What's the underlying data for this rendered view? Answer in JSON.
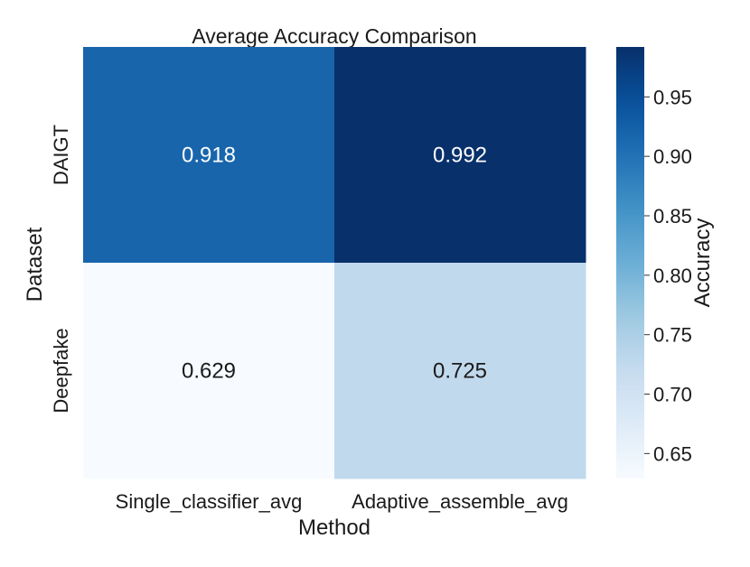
{
  "chart_data": {
    "type": "heatmap",
    "title": "Average Accuracy Comparison",
    "xlabel": "Method",
    "ylabel": "Dataset",
    "x_categories": [
      "Single_classifier_avg",
      "Adaptive_assemble_avg"
    ],
    "y_categories": [
      "DAIGT",
      "Deepfake"
    ],
    "values": [
      [
        0.918,
        0.992
      ],
      [
        0.629,
        0.725
      ]
    ],
    "cell_labels": [
      [
        "0.918",
        "0.992"
      ],
      [
        "0.629",
        "0.725"
      ]
    ],
    "colorbar": {
      "label": "Accuracy",
      "vmin": 0.629,
      "vmax": 0.992,
      "ticks": [
        0.65,
        0.7,
        0.75,
        0.8,
        0.85,
        0.9,
        0.95
      ],
      "tick_labels": [
        "0.65",
        "0.70",
        "0.75",
        "0.80",
        "0.85",
        "0.90",
        "0.95"
      ],
      "colormap": "Blues"
    },
    "grid": false
  }
}
